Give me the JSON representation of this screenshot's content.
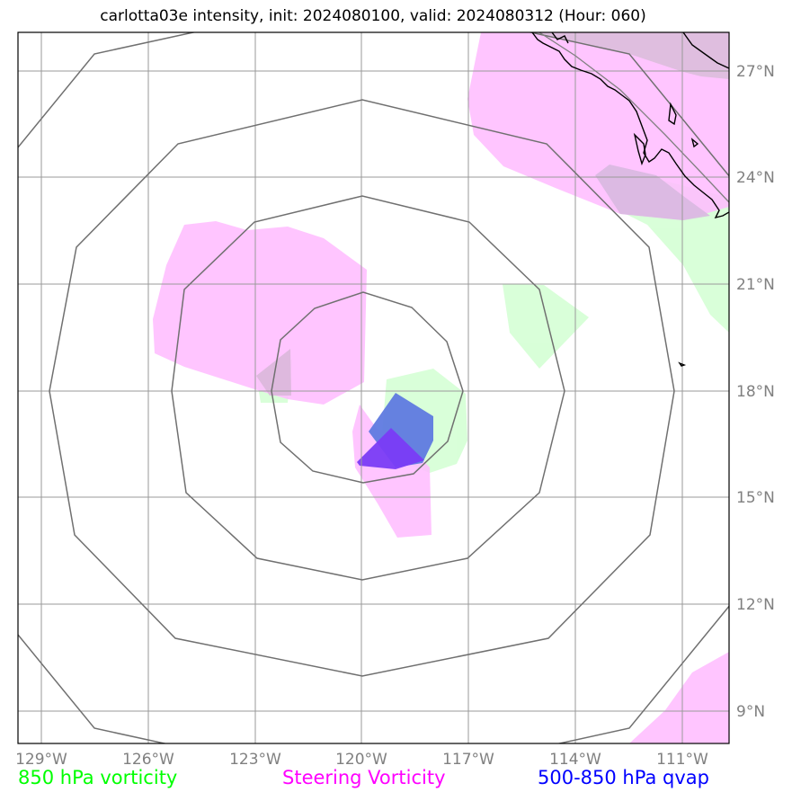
{
  "title": "carlotta03e intensity, init: 2024080100, valid: 2024080312 (Hour: 060)",
  "x_ticks": [
    "129°W",
    "126°W",
    "123°W",
    "120°W",
    "117°W",
    "114°W",
    "111°W"
  ],
  "y_ticks": [
    "27°N",
    "24°N",
    "21°N",
    "18°N",
    "15°N",
    "12°N",
    "9°N"
  ],
  "legend": {
    "vort850": {
      "label": "850 hPa vorticity",
      "color": "#00ff00"
    },
    "steering": {
      "label": "Steering Vorticity",
      "color": "#ff00ff"
    },
    "qvap": {
      "label": "500-850 hPa qvap",
      "color": "#0000ff"
    }
  },
  "fill_colors": {
    "vort850": "#ccffcc",
    "steering": "#ffbbff",
    "qvap_light": "#5f7ae0",
    "qvap_dark": "#7a3cf5"
  },
  "map_extent": {
    "lon": [
      -130,
      -110
    ],
    "lat": [
      8,
      28
    ]
  }
}
